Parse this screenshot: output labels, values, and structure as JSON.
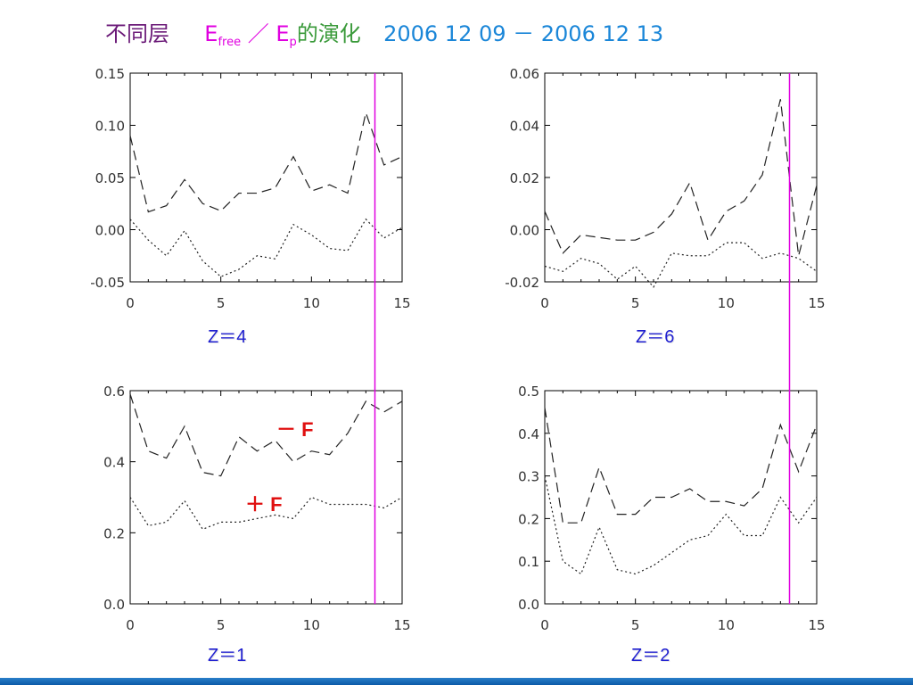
{
  "title": {
    "chinese_prefix": "不同层",
    "e1": "E",
    "e1_sub": "free",
    "slash": "／",
    "e2": "E",
    "e2_sub": "p",
    "chinese_suffix": "的演化",
    "date_range": "2006 12 09 － 2006 12 13",
    "colors": {
      "prefix": "#6b1a78",
      "e": "#e000e0",
      "suffix": "#3a9a3a",
      "date": "#1a86d8"
    }
  },
  "annotations": {
    "minus_f": "－ F",
    "plus_f": "＋ F",
    "color": "#e01010"
  },
  "marker_line": {
    "x": 13.5,
    "color": "#e000e0"
  },
  "chart_data": [
    {
      "id": "z4",
      "type": "line",
      "label": "Z＝4",
      "xlim": [
        0,
        15
      ],
      "ylim": [
        -0.05,
        0.15
      ],
      "xticks": [
        "0",
        "5",
        "10",
        "15"
      ],
      "xtick_values": [
        0,
        5,
        10,
        15
      ],
      "yticks": [
        "-0.05",
        "0.00",
        "0.05",
        "0.10",
        "0.15"
      ],
      "ytick_values": [
        -0.05,
        0.0,
        0.05,
        0.1,
        0.15
      ],
      "x": [
        0,
        1,
        2,
        3,
        4,
        5,
        6,
        7,
        8,
        9,
        10,
        11,
        12,
        13,
        14,
        15
      ],
      "series": [
        {
          "style": "dashed",
          "values": [
            0.09,
            0.017,
            0.023,
            0.048,
            0.025,
            0.018,
            0.035,
            0.035,
            0.04,
            0.07,
            0.037,
            0.043,
            0.035,
            0.112,
            0.062,
            0.07
          ]
        },
        {
          "style": "dotted",
          "values": [
            0.01,
            -0.01,
            -0.025,
            -0.001,
            -0.03,
            -0.045,
            -0.038,
            -0.025,
            -0.028,
            0.005,
            -0.005,
            -0.018,
            -0.02,
            0.01,
            -0.008,
            0.002
          ]
        }
      ]
    },
    {
      "id": "z6",
      "type": "line",
      "label": "Z＝6",
      "xlim": [
        0,
        15
      ],
      "ylim": [
        -0.02,
        0.06
      ],
      "xticks": [
        "0",
        "5",
        "10",
        "15"
      ],
      "xtick_values": [
        0,
        5,
        10,
        15
      ],
      "yticks": [
        "-0.02",
        "0.00",
        "0.02",
        "0.04",
        "0.06"
      ],
      "ytick_values": [
        -0.02,
        0.0,
        0.02,
        0.04,
        0.06
      ],
      "x": [
        0,
        1,
        2,
        3,
        4,
        5,
        6,
        7,
        8,
        9,
        10,
        11,
        12,
        13,
        14,
        15
      ],
      "series": [
        {
          "style": "dashed",
          "values": [
            0.007,
            -0.009,
            -0.002,
            -0.003,
            -0.004,
            -0.004,
            -0.001,
            0.006,
            0.018,
            -0.004,
            0.007,
            0.011,
            0.021,
            0.05,
            -0.01,
            0.017
          ]
        },
        {
          "style": "dotted",
          "values": [
            -0.014,
            -0.016,
            -0.011,
            -0.013,
            -0.019,
            -0.014,
            -0.022,
            -0.009,
            -0.01,
            -0.01,
            -0.005,
            -0.005,
            -0.011,
            -0.009,
            -0.011,
            -0.016
          ]
        }
      ]
    },
    {
      "id": "z1",
      "type": "line",
      "label": "Z＝1",
      "xlim": [
        0,
        15
      ],
      "ylim": [
        0.0,
        0.6
      ],
      "xticks": [
        "0",
        "5",
        "10",
        "15"
      ],
      "xtick_values": [
        0,
        5,
        10,
        15
      ],
      "yticks": [
        "0.0",
        "0.2",
        "0.4",
        "0.6"
      ],
      "ytick_values": [
        0.0,
        0.2,
        0.4,
        0.6
      ],
      "x": [
        0,
        1,
        2,
        3,
        4,
        5,
        6,
        7,
        8,
        9,
        10,
        11,
        12,
        13,
        14,
        15
      ],
      "series": [
        {
          "style": "dashed",
          "values": [
            0.59,
            0.43,
            0.41,
            0.5,
            0.37,
            0.36,
            0.47,
            0.43,
            0.46,
            0.4,
            0.43,
            0.42,
            0.48,
            0.57,
            0.54,
            0.57
          ]
        },
        {
          "style": "dotted",
          "values": [
            0.3,
            0.22,
            0.23,
            0.29,
            0.21,
            0.23,
            0.23,
            0.24,
            0.25,
            0.24,
            0.3,
            0.28,
            0.28,
            0.28,
            0.27,
            0.3
          ]
        }
      ]
    },
    {
      "id": "z2",
      "type": "line",
      "label": "Z＝2",
      "xlim": [
        0,
        15
      ],
      "ylim": [
        0.0,
        0.5
      ],
      "xticks": [
        "0",
        "5",
        "10",
        "15"
      ],
      "xtick_values": [
        0,
        5,
        10,
        15
      ],
      "yticks": [
        "0.0",
        "0.1",
        "0.2",
        "0.3",
        "0.4",
        "0.5"
      ],
      "ytick_values": [
        0.0,
        0.1,
        0.2,
        0.3,
        0.4,
        0.5
      ],
      "x": [
        0,
        1,
        2,
        3,
        4,
        5,
        6,
        7,
        8,
        9,
        10,
        11,
        12,
        13,
        14,
        15
      ],
      "series": [
        {
          "style": "dashed",
          "values": [
            0.46,
            0.19,
            0.19,
            0.32,
            0.21,
            0.21,
            0.25,
            0.25,
            0.27,
            0.24,
            0.24,
            0.23,
            0.27,
            0.42,
            0.31,
            0.42
          ]
        },
        {
          "style": "dotted",
          "values": [
            0.3,
            0.1,
            0.07,
            0.18,
            0.08,
            0.07,
            0.09,
            0.12,
            0.15,
            0.16,
            0.21,
            0.16,
            0.16,
            0.25,
            0.19,
            0.25
          ]
        }
      ]
    }
  ]
}
